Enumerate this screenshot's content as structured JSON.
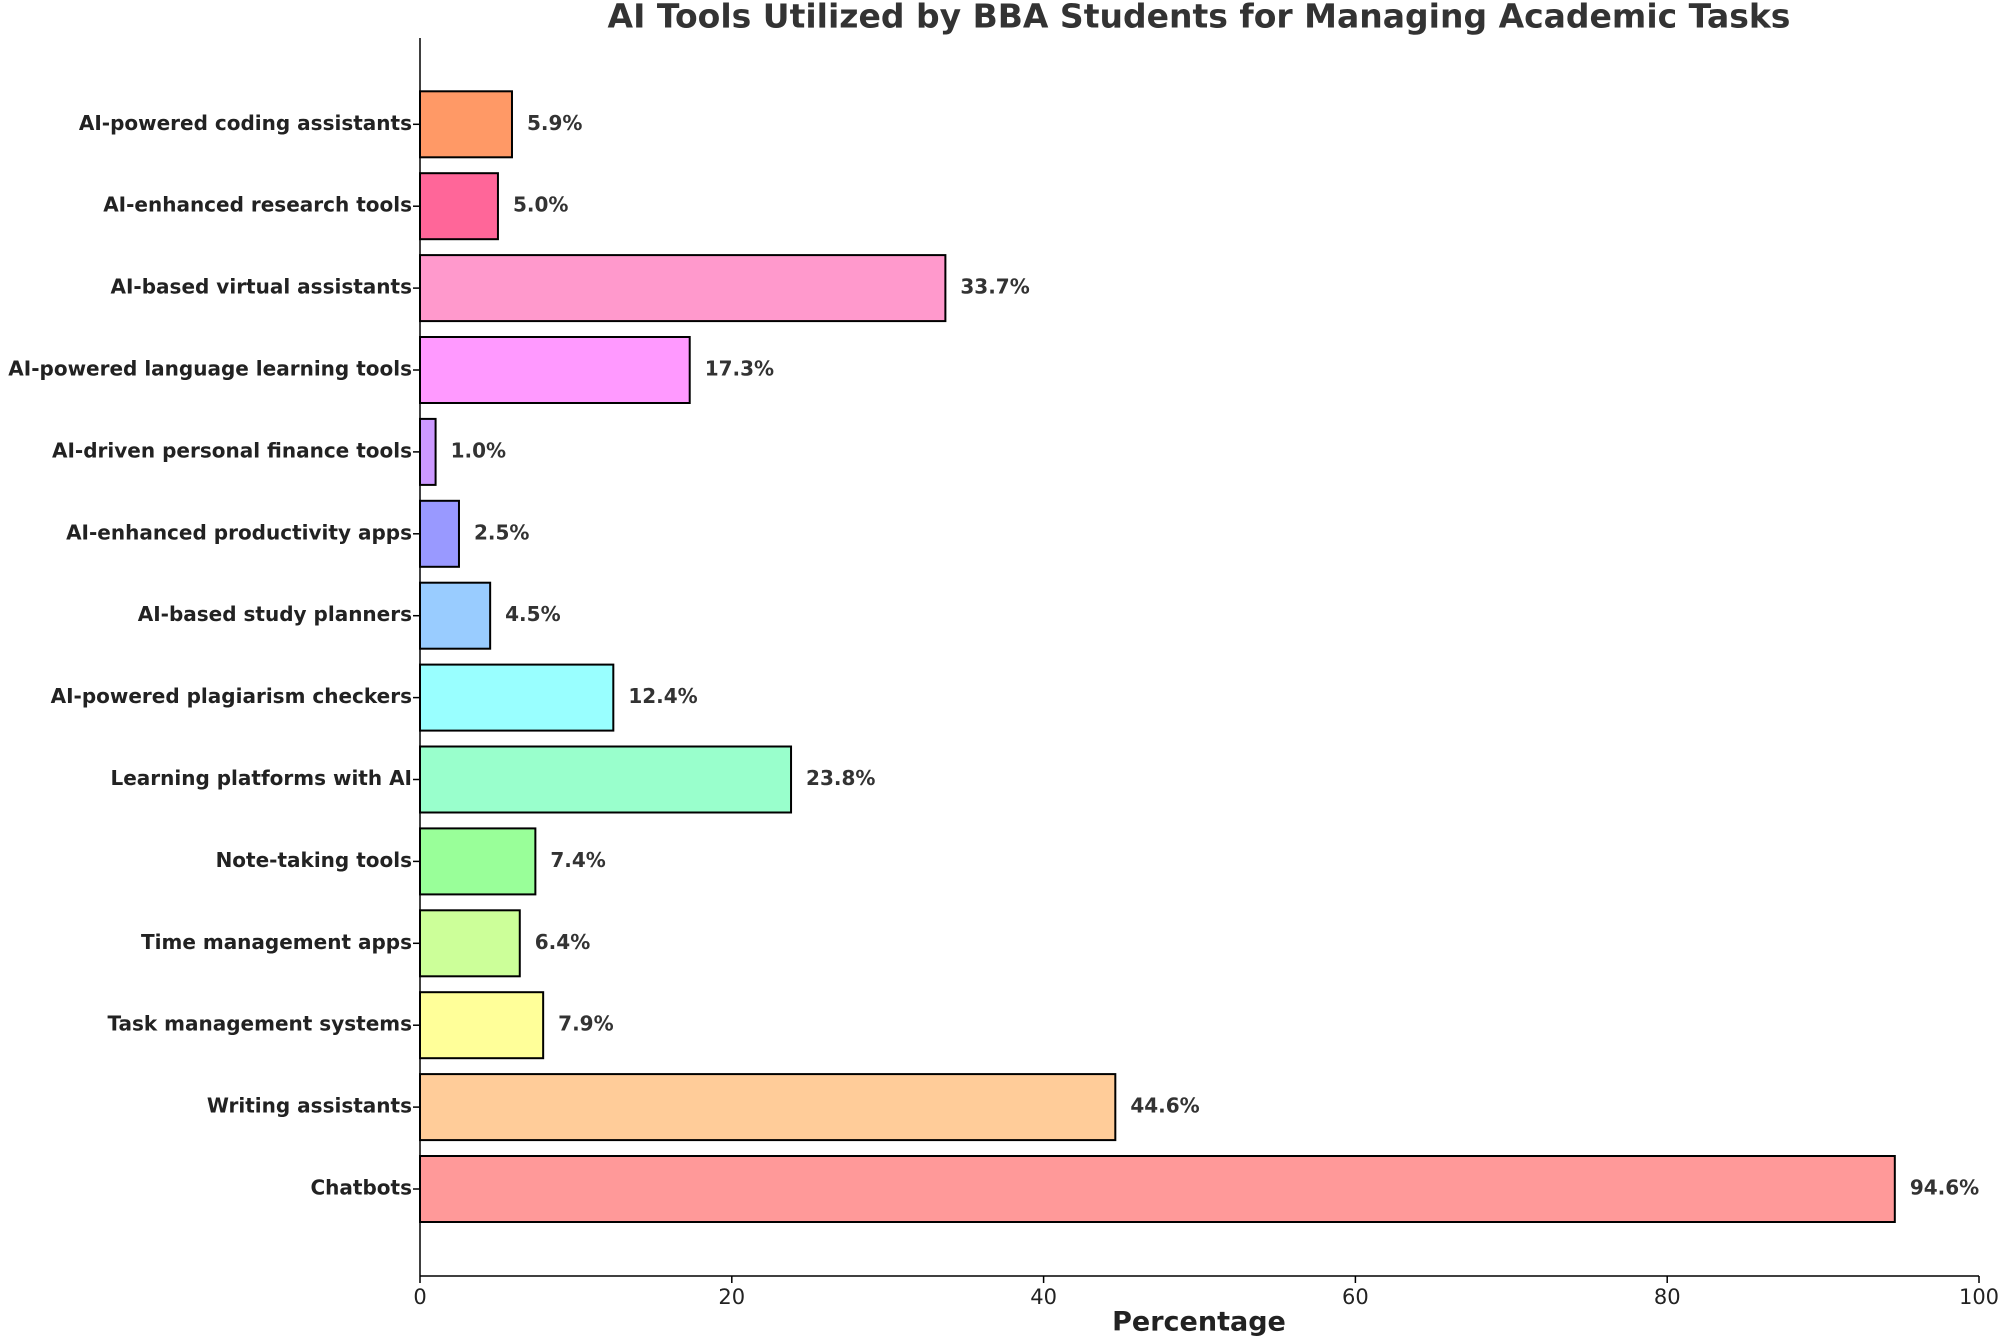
{
  "chart_data": {
    "type": "barh",
    "title": "AI Tools Utilized by BBA Students for Managing Academic Tasks",
    "xlabel": "Percentage",
    "categories": [
      "Chatbots",
      "Writing assistants",
      "Task management systems",
      "Time management apps",
      "Note-taking tools",
      "Learning platforms with AI",
      "AI-powered plagiarism checkers",
      "AI-based study planners",
      "AI-enhanced productivity apps",
      "AI-driven personal finance tools",
      "AI-powered language learning tools",
      "AI-based virtual assistants",
      "AI-enhanced research tools",
      "AI-powered coding assistants"
    ],
    "values": [
      94.6,
      44.6,
      7.9,
      6.4,
      7.4,
      23.8,
      12.4,
      4.5,
      2.5,
      1.0,
      17.3,
      33.7,
      5.0,
      5.9
    ],
    "value_labels": [
      "94.6%",
      "44.6%",
      "7.9%",
      "6.4%",
      "7.4%",
      "23.8%",
      "12.4%",
      "4.5%",
      "2.5%",
      "1.0%",
      "17.3%",
      "33.7%",
      "5.0%",
      "5.9%"
    ],
    "colors": [
      "#ff9999",
      "#ffcc99",
      "#ffff99",
      "#ccff99",
      "#99ff99",
      "#99ffcc",
      "#99ffff",
      "#99ccff",
      "#9999ff",
      "#cc99ff",
      "#ff99ff",
      "#ff99cc",
      "#ff6699",
      "#ff9966"
    ],
    "xlim": [
      0,
      100
    ],
    "xticks": [
      0,
      20,
      40,
      60,
      80,
      100
    ],
    "grid": false
  }
}
